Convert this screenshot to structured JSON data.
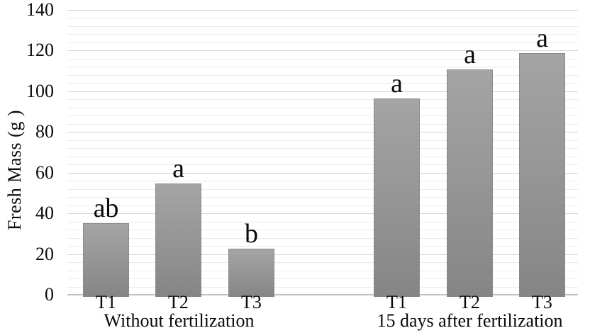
{
  "chart_data": {
    "type": "bar",
    "title": "",
    "xlabel": "",
    "ylabel": "Fresh Mass (g )",
    "ylim": [
      0,
      140
    ],
    "yticks": [
      0,
      20,
      40,
      60,
      80,
      100,
      120,
      140
    ],
    "minor_grid_unit": 4,
    "major_grid_unit": 20,
    "grid": "horizontal minor+major, no vertical grid",
    "legend": "none",
    "bar_letter_annotations": true,
    "groups": [
      {
        "label": "Without fertilization",
        "bars": [
          {
            "category": "T1",
            "value": 35,
            "letter": "ab"
          },
          {
            "category": "T2",
            "value": 54.5,
            "letter": "a"
          },
          {
            "category": "T3",
            "value": 22.5,
            "letter": "b"
          }
        ]
      },
      {
        "label": "15 days after fertilization",
        "bars": [
          {
            "category": "T1",
            "value": 96.5,
            "letter": "a"
          },
          {
            "category": "T2",
            "value": 110.5,
            "letter": "a"
          },
          {
            "category": "T3",
            "value": 118.5,
            "letter": "a"
          }
        ]
      }
    ],
    "colors": {
      "bar_fill_top": "#a4a4a4",
      "bar_fill_bottom": "#858585",
      "bar_border": "#8a8a8a",
      "minor_grid": "#ebebeb",
      "major_grid": "#d4d4d4",
      "axis_line": "#c2c2c2",
      "text": "#0a0a0a",
      "background": "#ffffff"
    }
  }
}
